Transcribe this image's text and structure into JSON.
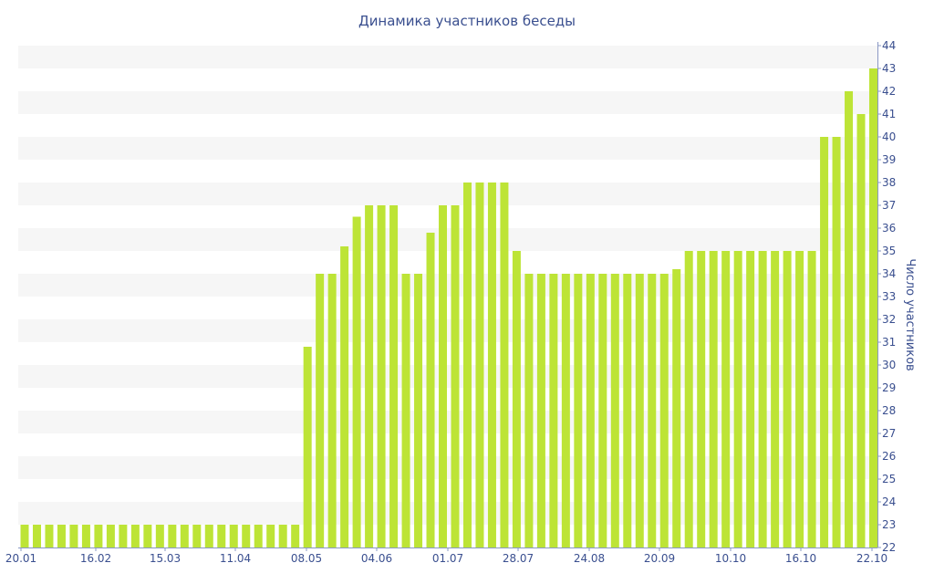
{
  "chart_data": {
    "type": "bar",
    "title": "Динамика участников беседы",
    "ylabel": "Число участников",
    "xlabel": "",
    "ylim": [
      22,
      44
    ],
    "y_axis_side": "right",
    "grid": "horizontal bands",
    "bar_color": "#bde436",
    "band_color": "#f6f6f6",
    "text_color": "#3a4f8f",
    "x_tick_labels": [
      "20.01",
      "16.02",
      "15.03",
      "11.04",
      "08.05",
      "04.06",
      "01.07",
      "28.07",
      "24.08",
      "20.09",
      "10.10",
      "16.10",
      "22.10"
    ],
    "y_ticks": [
      22,
      23,
      24,
      25,
      26,
      27,
      28,
      29,
      30,
      31,
      32,
      33,
      34,
      35,
      36,
      37,
      38,
      39,
      40,
      41,
      42,
      43,
      44
    ],
    "values": [
      23,
      23,
      23,
      23,
      23,
      23,
      23,
      23,
      23,
      23,
      23,
      23,
      23,
      23,
      23,
      23,
      23,
      23,
      23,
      23,
      23,
      23,
      23,
      30.8,
      34,
      34,
      35.2,
      36.5,
      37,
      37,
      37,
      34,
      34,
      35.8,
      37,
      37,
      38,
      38,
      38,
      38,
      35,
      34,
      34,
      34,
      34,
      34,
      34,
      34,
      34,
      34,
      34,
      34,
      34,
      34.2,
      35,
      35,
      35,
      35,
      35,
      35,
      35,
      35,
      35,
      35,
      35,
      40,
      40,
      42,
      41,
      43
    ]
  }
}
